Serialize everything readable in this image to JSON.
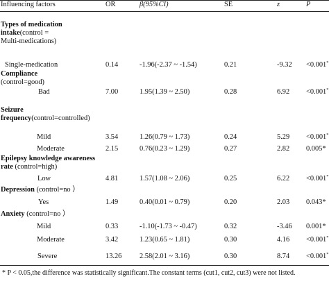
{
  "header": {
    "col_factor": "Influencing factors",
    "col_or": "OR",
    "col_beta": "β(95%CI)",
    "col_se": "SE",
    "col_z": "z",
    "col_p": "P"
  },
  "groups": [
    {
      "title_lines": [
        "Types of medication",
        "intake"
      ],
      "control_inline": "(control =",
      "control_extra": "Multi-medications)"
    },
    {
      "title_lines": [
        "Compliance"
      ],
      "control_next": "(control=good)"
    },
    {
      "title_lines": [
        "Seizure",
        "frequency"
      ],
      "control_inline": "(control=controlled)"
    },
    {
      "title_lines": [
        "Epilepsy knowledge awareness",
        "rate"
      ],
      "control_inline": " (control=high)"
    },
    {
      "title_lines": [
        "Depression"
      ],
      "control_inline": " (control=no ）"
    },
    {
      "title_lines": [
        "Anxiety"
      ],
      "control_inline": " (control=no ）"
    }
  ],
  "rows": [
    {
      "label": "Single-medication",
      "or": "0.14",
      "beta": "-1.96(-2.37 ~ -1.54)",
      "se": "0.21",
      "z": "-9.32",
      "p": "<0.001",
      "star": "*"
    },
    {
      "label": "Bad",
      "or": "7.00",
      "beta": "1.95(1.39 ~ 2.50)",
      "se": "0.28",
      "z": "6.92",
      "p": "<0.001",
      "star": "*"
    },
    {
      "label": "Mild",
      "or": "3.54",
      "beta": "1.26(0.79 ~ 1.73)",
      "se": "0.24",
      "z": "5.29",
      "p": "<0.001",
      "star": "*"
    },
    {
      "label": "Moderate",
      "or": "2.15",
      "beta": "0.76(0.23 ~ 1.29)",
      "se": "0.27",
      "z": "2.82",
      "p": "0.005",
      "star": "*"
    },
    {
      "label": "Low",
      "or": "4.81",
      "beta": "1.57(1.08 ~ 2.06)",
      "se": "0.25",
      "z": "6.22",
      "p": "<0.001",
      "star": "*"
    },
    {
      "label": "Yes",
      "or": "1.49",
      "beta": "0.40(0.01 ~ 0.79)",
      "se": "0.20",
      "z": "2.03",
      "p": "0.043",
      "star": "*"
    },
    {
      "label": "Mild",
      "or": "0.33",
      "beta": "-1.10(-1.73 ~ -0.47)",
      "se": "0.32",
      "z": "-3.46",
      "p": "0.001",
      "star": "*"
    },
    {
      "label": "Moderate",
      "or": "3.42",
      "beta": "1.23(0.65 ~ 1.81)",
      "se": "0.30",
      "z": "4.16",
      "p": "<0.001",
      "star": "*"
    },
    {
      "label": "Severe",
      "or": "13.26",
      "beta": "2.58(2.01 ~ 3.16)",
      "se": "0.30",
      "z": "8.74",
      "p": "<0.001",
      "star": "*"
    }
  ],
  "footnote": "* P < 0.05,the difference was statistically significant.The constant terms (cut1, cut2, cut3) were not listed."
}
